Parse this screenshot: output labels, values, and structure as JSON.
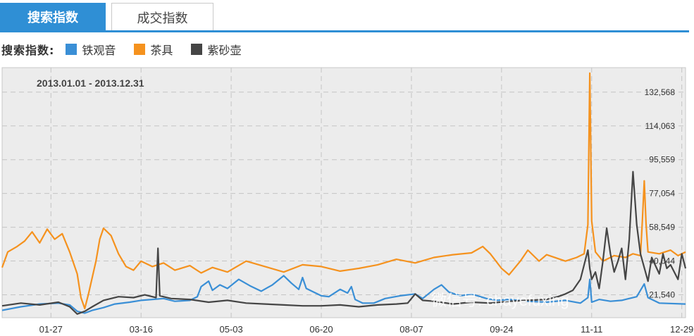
{
  "tabs": [
    {
      "label": "搜索指数",
      "active": true
    },
    {
      "label": "成交指数",
      "active": false
    }
  ],
  "legend": {
    "title": "搜索指数:",
    "items": [
      {
        "label": "铁观音",
        "color": "#3a8fd6"
      },
      {
        "label": "茶具",
        "color": "#f5921e"
      },
      {
        "label": "紫砂壶",
        "color": "#454545"
      }
    ]
  },
  "watermark": "微信号: chayefuxing",
  "chart_data": {
    "type": "line",
    "date_range": "2013.01.01 - 2013.12.31",
    "y_ticks": [
      21540,
      40044,
      58549,
      77054,
      95559,
      114063,
      132568
    ],
    "y_tick_labels": [
      "21,540",
      "40,044",
      "58,549",
      "77,054",
      "95,559",
      "114,063",
      "132,568"
    ],
    "ylim": [
      9000,
      146000
    ],
    "x_ticks": [
      "01-27",
      "03-16",
      "05-03",
      "06-20",
      "08-07",
      "09-24",
      "11-11",
      "12-29"
    ],
    "x_tick_days": [
      26,
      74,
      122,
      170,
      218,
      266,
      314,
      362
    ],
    "xlim": [
      0,
      364
    ],
    "grid": true,
    "series": [
      {
        "name": "铁观音",
        "color": "#3a8fd6",
        "points": [
          [
            0,
            13000
          ],
          [
            10,
            15000
          ],
          [
            20,
            16500
          ],
          [
            30,
            17000
          ],
          [
            36,
            16000
          ],
          [
            40,
            12500
          ],
          [
            44,
            11500
          ],
          [
            48,
            13000
          ],
          [
            54,
            14500
          ],
          [
            60,
            16500
          ],
          [
            68,
            17500
          ],
          [
            74,
            18500
          ],
          [
            80,
            19000
          ],
          [
            86,
            19500
          ],
          [
            92,
            18000
          ],
          [
            100,
            18500
          ],
          [
            104,
            20500
          ],
          [
            106,
            26000
          ],
          [
            110,
            29000
          ],
          [
            112,
            24000
          ],
          [
            116,
            27000
          ],
          [
            120,
            25000
          ],
          [
            126,
            30000
          ],
          [
            132,
            26500
          ],
          [
            138,
            23500
          ],
          [
            144,
            27000
          ],
          [
            150,
            32000
          ],
          [
            154,
            28000
          ],
          [
            158,
            24500
          ],
          [
            160,
            31000
          ],
          [
            162,
            25000
          ],
          [
            166,
            23000
          ],
          [
            170,
            21000
          ],
          [
            174,
            20500
          ],
          [
            180,
            24500
          ],
          [
            184,
            22500
          ],
          [
            186,
            26000
          ],
          [
            188,
            19000
          ],
          [
            192,
            17000
          ],
          [
            198,
            17000
          ],
          [
            204,
            19500
          ],
          [
            212,
            21000
          ],
          [
            220,
            22000
          ],
          [
            224,
            19500
          ],
          [
            230,
            24500
          ],
          [
            234,
            27000
          ],
          [
            238,
            23000
          ],
          [
            244,
            21000
          ],
          [
            250,
            22000
          ],
          [
            258,
            19500
          ],
          [
            264,
            18500
          ],
          [
            270,
            19000
          ],
          [
            280,
            18000
          ],
          [
            290,
            17500
          ],
          [
            300,
            18500
          ],
          [
            308,
            17000
          ],
          [
            312,
            20000
          ],
          [
            313,
            30000
          ],
          [
            314,
            17500
          ],
          [
            318,
            19000
          ],
          [
            324,
            18000
          ],
          [
            330,
            18500
          ],
          [
            338,
            20500
          ],
          [
            342,
            27500
          ],
          [
            344,
            20000
          ],
          [
            350,
            17000
          ],
          [
            364,
            16500
          ]
        ]
      },
      {
        "name": "茶具",
        "color": "#f5921e",
        "points": [
          [
            0,
            36500
          ],
          [
            3,
            45000
          ],
          [
            8,
            48000
          ],
          [
            12,
            51000
          ],
          [
            16,
            56000
          ],
          [
            20,
            50000
          ],
          [
            24,
            57500
          ],
          [
            28,
            52000
          ],
          [
            32,
            55000
          ],
          [
            36,
            45000
          ],
          [
            40,
            33000
          ],
          [
            42,
            20000
          ],
          [
            44,
            14000
          ],
          [
            46,
            22000
          ],
          [
            50,
            40000
          ],
          [
            52,
            52000
          ],
          [
            54,
            58000
          ],
          [
            58,
            54000
          ],
          [
            62,
            44000
          ],
          [
            66,
            37000
          ],
          [
            70,
            35000
          ],
          [
            74,
            40000
          ],
          [
            80,
            37000
          ],
          [
            86,
            39000
          ],
          [
            92,
            35000
          ],
          [
            100,
            37500
          ],
          [
            106,
            33500
          ],
          [
            112,
            36500
          ],
          [
            120,
            34000
          ],
          [
            130,
            40000
          ],
          [
            140,
            37000
          ],
          [
            150,
            34000
          ],
          [
            160,
            38000
          ],
          [
            170,
            37000
          ],
          [
            180,
            34500
          ],
          [
            190,
            36000
          ],
          [
            200,
            38000
          ],
          [
            210,
            41000
          ],
          [
            220,
            39000
          ],
          [
            230,
            42000
          ],
          [
            240,
            43500
          ],
          [
            250,
            44500
          ],
          [
            256,
            48000
          ],
          [
            260,
            44000
          ],
          [
            266,
            36000
          ],
          [
            270,
            32500
          ],
          [
            276,
            40000
          ],
          [
            280,
            46000
          ],
          [
            286,
            40000
          ],
          [
            290,
            43500
          ],
          [
            300,
            40000
          ],
          [
            306,
            42000
          ],
          [
            310,
            44000
          ],
          [
            312,
            60000
          ],
          [
            313,
            143000
          ],
          [
            314,
            62000
          ],
          [
            316,
            45000
          ],
          [
            320,
            40000
          ],
          [
            326,
            43000
          ],
          [
            332,
            42000
          ],
          [
            336,
            44000
          ],
          [
            340,
            43000
          ],
          [
            341,
            62000
          ],
          [
            342,
            84000
          ],
          [
            343,
            60000
          ],
          [
            344,
            45000
          ],
          [
            350,
            44000
          ],
          [
            356,
            46000
          ],
          [
            360,
            43000
          ],
          [
            364,
            45000
          ]
        ]
      },
      {
        "name": "紫砂壶",
        "color": "#454545",
        "points": [
          [
            0,
            15500
          ],
          [
            10,
            17000
          ],
          [
            20,
            16000
          ],
          [
            30,
            17500
          ],
          [
            36,
            15000
          ],
          [
            40,
            11000
          ],
          [
            44,
            12500
          ],
          [
            48,
            15000
          ],
          [
            54,
            18500
          ],
          [
            62,
            20500
          ],
          [
            70,
            20000
          ],
          [
            76,
            21500
          ],
          [
            82,
            20000
          ],
          [
            83,
            47000
          ],
          [
            84,
            21000
          ],
          [
            90,
            19500
          ],
          [
            100,
            19000
          ],
          [
            110,
            17500
          ],
          [
            120,
            18500
          ],
          [
            130,
            17000
          ],
          [
            140,
            16500
          ],
          [
            150,
            16000
          ],
          [
            160,
            15500
          ],
          [
            170,
            15500
          ],
          [
            180,
            16000
          ],
          [
            190,
            15000
          ],
          [
            200,
            16000
          ],
          [
            210,
            16500
          ],
          [
            216,
            17000
          ],
          [
            220,
            22000
          ],
          [
            224,
            18500
          ],
          [
            230,
            18000
          ],
          [
            240,
            16500
          ],
          [
            250,
            17500
          ],
          [
            260,
            17000
          ],
          [
            270,
            18000
          ],
          [
            280,
            18500
          ],
          [
            290,
            19000
          ],
          [
            296,
            20500
          ],
          [
            300,
            22000
          ],
          [
            304,
            24000
          ],
          [
            308,
            30000
          ],
          [
            310,
            38000
          ],
          [
            312,
            46000
          ],
          [
            313,
            36000
          ],
          [
            314,
            30000
          ],
          [
            316,
            34000
          ],
          [
            318,
            25000
          ],
          [
            320,
            40000
          ],
          [
            322,
            58000
          ],
          [
            324,
            44000
          ],
          [
            326,
            34000
          ],
          [
            328,
            40000
          ],
          [
            330,
            47000
          ],
          [
            332,
            30000
          ],
          [
            334,
            52000
          ],
          [
            336,
            89000
          ],
          [
            338,
            60000
          ],
          [
            340,
            44000
          ],
          [
            344,
            29000
          ],
          [
            346,
            42000
          ],
          [
            350,
            33000
          ],
          [
            352,
            44000
          ],
          [
            354,
            36000
          ],
          [
            356,
            38000
          ],
          [
            360,
            30000
          ],
          [
            362,
            44000
          ],
          [
            364,
            36000
          ]
        ]
      }
    ]
  }
}
